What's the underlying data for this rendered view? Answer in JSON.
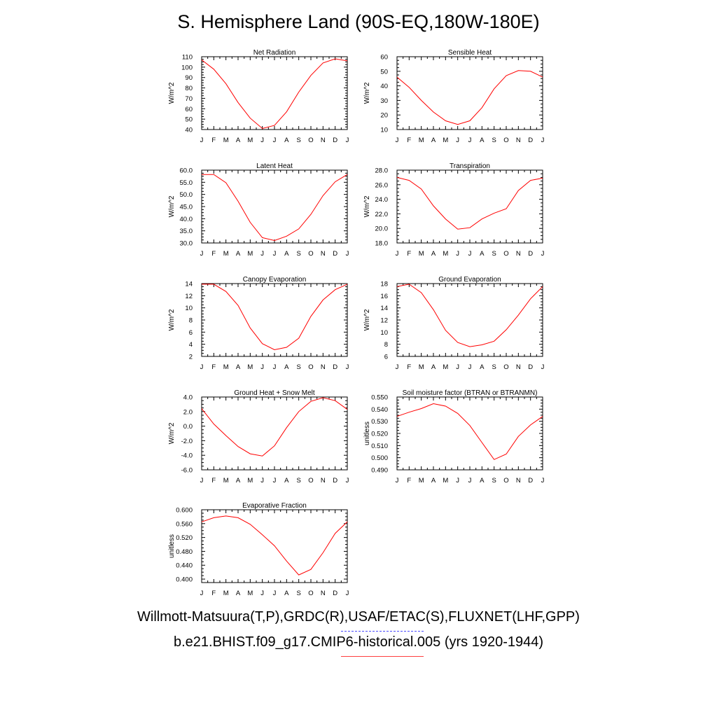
{
  "title": "S. Hemisphere Land (90S-EQ,180W-180E)",
  "legend": {
    "observations": "Willmott-Matsuura(T,P),GRDC(R),USAF/ETAC(S),FLUXNET(LHF,GPP)",
    "model": "b.e21.BHIST.f09_g17.CMIP6-historical.005 (yrs 1920-1944)",
    "observations_color": "#4a4aff",
    "model_color": "#ff0000"
  },
  "chart_data": [
    {
      "type": "line",
      "title": "Net Radiation",
      "ylabel": "W/m^2",
      "x": [
        "J",
        "F",
        "M",
        "A",
        "M",
        "J",
        "J",
        "A",
        "S",
        "O",
        "N",
        "D",
        "J"
      ],
      "ylim": [
        40,
        110
      ],
      "yticks": [
        "40",
        "50",
        "60",
        "70",
        "80",
        "90",
        "100",
        "110"
      ],
      "grid": false,
      "series": [
        {
          "values": [
            107,
            98,
            84,
            66,
            51,
            41,
            44,
            57,
            76,
            92,
            104,
            108,
            106
          ],
          "color": "#ff0000"
        }
      ]
    },
    {
      "type": "line",
      "title": "Sensible Heat",
      "ylabel": "W/m^2",
      "x": [
        "J",
        "F",
        "M",
        "A",
        "M",
        "J",
        "J",
        "A",
        "S",
        "O",
        "N",
        "D",
        "J"
      ],
      "ylim": [
        10,
        60
      ],
      "yticks": [
        "10",
        "20",
        "30",
        "40",
        "50",
        "60"
      ],
      "grid": false,
      "series": [
        {
          "values": [
            46,
            39,
            30,
            22,
            16,
            13.5,
            16,
            25,
            38,
            47,
            50.5,
            50,
            46
          ],
          "color": "#ff0000"
        }
      ]
    },
    {
      "type": "line",
      "title": "Latent Heat",
      "ylabel": "W/m^2",
      "x": [
        "J",
        "F",
        "M",
        "A",
        "M",
        "J",
        "J",
        "A",
        "S",
        "O",
        "N",
        "D",
        "J"
      ],
      "ylim": [
        30,
        60
      ],
      "yticks": [
        "30.0",
        "35.0",
        "40.0",
        "45.0",
        "50.0",
        "55.0",
        "60.0"
      ],
      "grid": false,
      "series": [
        {
          "values": [
            58.2,
            58.2,
            54.8,
            47.2,
            38.5,
            32.2,
            31,
            32.8,
            35.8,
            41.8,
            49.5,
            55.2,
            58.2
          ],
          "color": "#ff0000"
        }
      ]
    },
    {
      "type": "line",
      "title": "Transpiration",
      "ylabel": "W/m^2",
      "x": [
        "J",
        "F",
        "M",
        "A",
        "M",
        "J",
        "J",
        "A",
        "S",
        "O",
        "N",
        "D",
        "J"
      ],
      "ylim": [
        18,
        28
      ],
      "yticks": [
        "18.0",
        "20.0",
        "22.0",
        "24.0",
        "26.0",
        "28.0"
      ],
      "grid": false,
      "series": [
        {
          "values": [
            27,
            26.6,
            25.4,
            23.1,
            21.3,
            19.9,
            20.1,
            21.3,
            22.1,
            22.7,
            25.2,
            26.6,
            26.9
          ],
          "color": "#ff0000"
        }
      ]
    },
    {
      "type": "line",
      "title": "Canopy Evaporation",
      "ylabel": "W/m^2",
      "x": [
        "J",
        "F",
        "M",
        "A",
        "M",
        "J",
        "J",
        "A",
        "S",
        "O",
        "N",
        "D",
        "J"
      ],
      "ylim": [
        2,
        14
      ],
      "yticks": [
        "2",
        "4",
        "6",
        "8",
        "10",
        "12",
        "14"
      ],
      "grid": false,
      "series": [
        {
          "values": [
            13.9,
            13.9,
            12.7,
            10.4,
            6.7,
            4.1,
            3.1,
            3.5,
            5,
            8.6,
            11.3,
            13,
            13.9
          ],
          "color": "#ff0000"
        }
      ]
    },
    {
      "type": "line",
      "title": "Ground Evaporation",
      "ylabel": "W/m^2",
      "x": [
        "J",
        "F",
        "M",
        "A",
        "M",
        "J",
        "J",
        "A",
        "S",
        "O",
        "N",
        "D",
        "J"
      ],
      "ylim": [
        6,
        18
      ],
      "yticks": [
        "6",
        "8",
        "10",
        "12",
        "14",
        "16",
        "18"
      ],
      "grid": false,
      "series": [
        {
          "values": [
            17.5,
            17.9,
            16.5,
            13.7,
            10.3,
            8.3,
            7.6,
            7.9,
            8.5,
            10.4,
            12.8,
            15.5,
            17.5
          ],
          "color": "#ff0000"
        }
      ]
    },
    {
      "type": "line",
      "title": "Ground Heat + Snow Melt",
      "ylabel": "W/m^2",
      "x": [
        "J",
        "F",
        "M",
        "A",
        "M",
        "J",
        "J",
        "A",
        "S",
        "O",
        "N",
        "D",
        "J"
      ],
      "ylim": [
        -6,
        4
      ],
      "yticks": [
        "-6.0",
        "-4.0",
        "-2.0",
        "0.0",
        "2.0",
        "4.0"
      ],
      "grid": false,
      "series": [
        {
          "values": [
            2.4,
            0.3,
            -1.3,
            -2.8,
            -3.8,
            -4.1,
            -2.7,
            -0.2,
            2,
            3.4,
            3.9,
            3.5,
            2.3
          ],
          "color": "#ff0000"
        }
      ]
    },
    {
      "type": "line",
      "title": "Soil moisture factor (BTRAN or BTRANMN)",
      "ylabel": "unitless",
      "x": [
        "J",
        "F",
        "M",
        "A",
        "M",
        "J",
        "J",
        "A",
        "S",
        "O",
        "N",
        "D",
        "J"
      ],
      "ylim": [
        0.49,
        0.55
      ],
      "yticks": [
        "0.490",
        "0.500",
        "0.510",
        "0.520",
        "0.530",
        "0.540",
        "0.550"
      ],
      "grid": false,
      "series": [
        {
          "values": [
            0.534,
            0.5375,
            0.5405,
            0.5445,
            0.5425,
            0.5365,
            0.5265,
            0.5125,
            0.4985,
            0.503,
            0.5175,
            0.527,
            0.534
          ],
          "color": "#ff0000"
        }
      ]
    },
    {
      "type": "line",
      "title": "Evaporative Fraction",
      "ylabel": "unitless",
      "x": [
        "J",
        "F",
        "M",
        "A",
        "M",
        "J",
        "J",
        "A",
        "S",
        "O",
        "N",
        "D",
        "J"
      ],
      "ylim": [
        0.39,
        0.6
      ],
      "yticks": [
        "0.400",
        "0.440",
        "0.480",
        "0.520",
        "0.560",
        "0.600"
      ],
      "grid": false,
      "series": [
        {
          "values": [
            0.565,
            0.577,
            0.582,
            0.577,
            0.558,
            0.528,
            0.496,
            0.452,
            0.412,
            0.428,
            0.476,
            0.532,
            0.565
          ],
          "color": "#ff0000"
        }
      ]
    }
  ]
}
